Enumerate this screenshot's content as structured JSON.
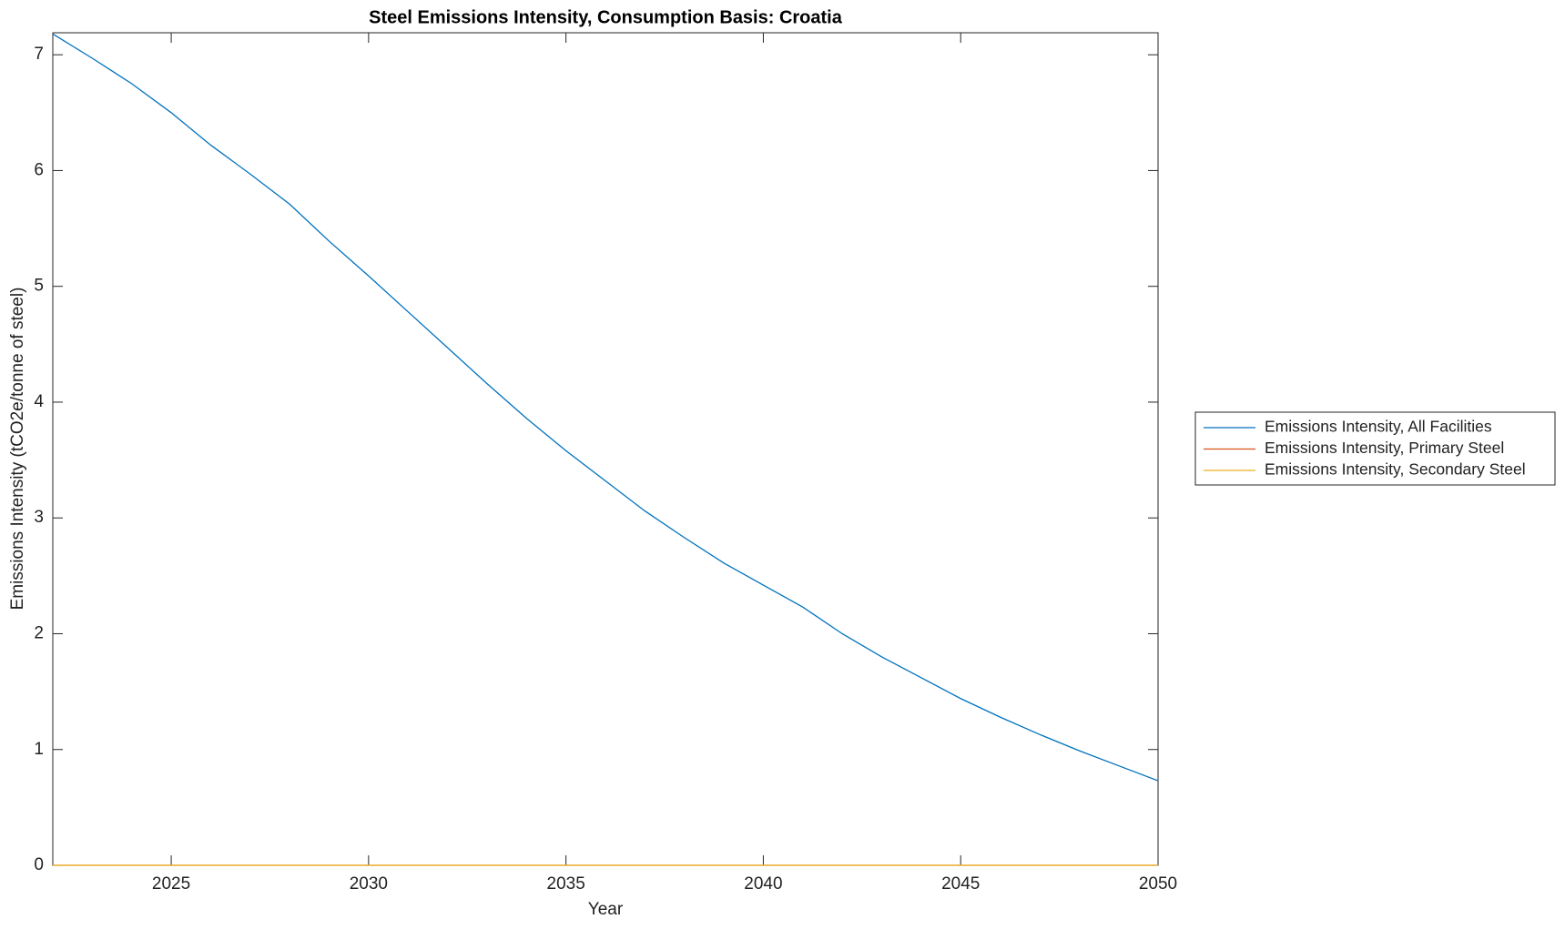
{
  "chart_data": {
    "type": "line",
    "title": "Steel Emissions Intensity, Consumption Basis: Croatia",
    "x_label": "Year",
    "y_label": "Emissions Intensity (tCO2e/tonne of steel)",
    "x": [
      2022,
      2023,
      2024,
      2025,
      2026,
      2027,
      2028,
      2029,
      2030,
      2031,
      2032,
      2033,
      2034,
      2035,
      2036,
      2037,
      2038,
      2039,
      2040,
      2041,
      2042,
      2043,
      2044,
      2045,
      2046,
      2047,
      2048,
      2049,
      2050
    ],
    "series": [
      {
        "name": "Emissions Intensity, All Facilities",
        "color": "#0072bd",
        "values": [
          7.18,
          6.97,
          6.75,
          6.5,
          6.22,
          5.97,
          5.71,
          5.39,
          5.09,
          4.78,
          4.47,
          4.16,
          3.86,
          3.58,
          3.32,
          3.06,
          2.83,
          2.61,
          2.42,
          2.23,
          2.0,
          1.8,
          1.62,
          1.44,
          1.28,
          1.13,
          0.99,
          0.86,
          0.73
        ]
      },
      {
        "name": "Emissions Intensity, Primary Steel",
        "color": "#d95319",
        "values": [
          0,
          0,
          0,
          0,
          0,
          0,
          0,
          0,
          0,
          0,
          0,
          0,
          0,
          0,
          0,
          0,
          0,
          0,
          0,
          0,
          0,
          0,
          0,
          0,
          0,
          0,
          0,
          0,
          0
        ]
      },
      {
        "name": "Emissions Intensity, Secondary Steel",
        "color": "#edb120",
        "values": [
          0,
          0,
          0,
          0,
          0,
          0,
          0,
          0,
          0,
          0,
          0,
          0,
          0,
          0,
          0,
          0,
          0,
          0,
          0,
          0,
          0,
          0,
          0,
          0,
          0,
          0,
          0,
          0,
          0
        ]
      }
    ],
    "xlim": [
      2022,
      2050
    ],
    "xticks": [
      2025,
      2030,
      2035,
      2040,
      2045,
      2050
    ],
    "ylim": [
      0,
      7.19
    ],
    "yticks": [
      0,
      1,
      2,
      3,
      4,
      5,
      6,
      7
    ],
    "legend": "outside-right"
  }
}
